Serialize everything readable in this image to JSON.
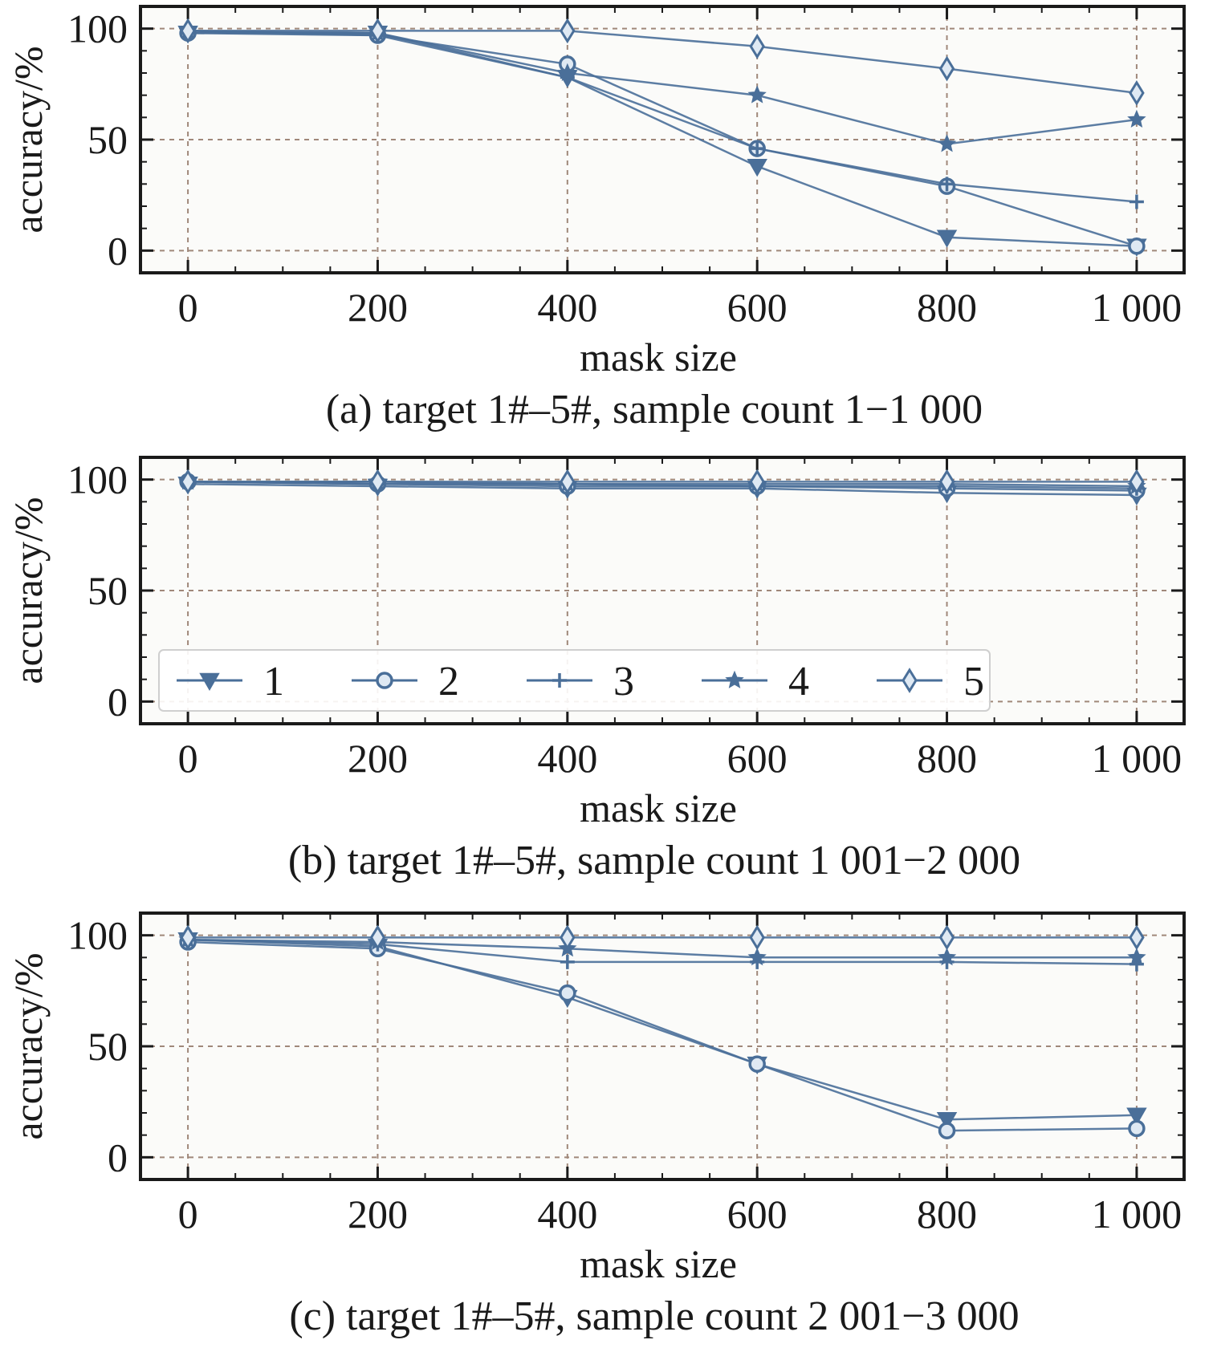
{
  "colors": {
    "series": "#4a6f99",
    "grid": "#a0887a",
    "axis": "#1a1a1a",
    "plot_bg": "#fbfbf9"
  },
  "chart_data": [
    {
      "type": "line",
      "caption": "(a) target 1#–5#, sample count 1−1 000",
      "xlabel": "mask size",
      "ylabel": "accuracy/%",
      "x": [
        0,
        200,
        400,
        600,
        800,
        1000
      ],
      "x_tick_labels": [
        "0",
        "200",
        "400",
        "600",
        "800",
        "1 000"
      ],
      "y_ticks": [
        0,
        50,
        100
      ],
      "y_tick_labels": [
        "0",
        "50",
        "100"
      ],
      "xlim": [
        -50,
        1050
      ],
      "ylim": [
        -10,
        110
      ],
      "grid": true,
      "series": [
        {
          "name": "1",
          "marker": "triangle-down",
          "values": [
            98,
            98,
            78,
            38,
            6,
            2
          ]
        },
        {
          "name": "2",
          "marker": "circle",
          "values": [
            98,
            97,
            84,
            46,
            29,
            2
          ]
        },
        {
          "name": "3",
          "marker": "plus",
          "values": [
            99,
            97,
            78,
            46,
            30,
            22
          ]
        },
        {
          "name": "4",
          "marker": "star",
          "values": [
            99,
            98,
            80,
            70,
            48,
            59
          ]
        },
        {
          "name": "5",
          "marker": "diamond",
          "values": [
            99,
            99,
            99,
            92,
            82,
            71
          ]
        }
      ]
    },
    {
      "type": "line",
      "caption": "(b) target 1#–5#, sample count 1 001−2 000",
      "xlabel": "mask size",
      "ylabel": "accuracy/%",
      "x": [
        0,
        200,
        400,
        600,
        800,
        1000
      ],
      "x_tick_labels": [
        "0",
        "200",
        "400",
        "600",
        "800",
        "1 000"
      ],
      "y_ticks": [
        0,
        50,
        100
      ],
      "y_tick_labels": [
        "0",
        "50",
        "100"
      ],
      "xlim": [
        -50,
        1050
      ],
      "ylim": [
        -10,
        110
      ],
      "grid": true,
      "legend": "bottom-left",
      "series": [
        {
          "name": "1",
          "marker": "triangle-down",
          "values": [
            98,
            97,
            96,
            96,
            94,
            93
          ]
        },
        {
          "name": "2",
          "marker": "circle",
          "values": [
            99,
            98,
            97,
            97,
            96,
            95
          ]
        },
        {
          "name": "3",
          "marker": "plus",
          "values": [
            99,
            98,
            98,
            97,
            97,
            96
          ]
        },
        {
          "name": "4",
          "marker": "star",
          "values": [
            99,
            99,
            98,
            98,
            98,
            97
          ]
        },
        {
          "name": "5",
          "marker": "diamond",
          "values": [
            99,
            99,
            99,
            99,
            99,
            99
          ]
        }
      ]
    },
    {
      "type": "line",
      "caption": "(c) target 1#–5#, sample count 2 001−3 000",
      "xlabel": "mask size",
      "ylabel": "accuracy/%",
      "x": [
        0,
        200,
        400,
        600,
        800,
        1000
      ],
      "x_tick_labels": [
        "0",
        "200",
        "400",
        "600",
        "800",
        "1 000"
      ],
      "y_ticks": [
        0,
        50,
        100
      ],
      "y_tick_labels": [
        "0",
        "50",
        "100"
      ],
      "xlim": [
        -50,
        1050
      ],
      "ylim": [
        -10,
        110
      ],
      "grid": true,
      "series": [
        {
          "name": "1",
          "marker": "triangle-down",
          "values": [
            98,
            95,
            72,
            42,
            17,
            19
          ]
        },
        {
          "name": "2",
          "marker": "circle",
          "values": [
            97,
            94,
            74,
            42,
            12,
            13
          ]
        },
        {
          "name": "3",
          "marker": "plus",
          "values": [
            98,
            96,
            88,
            88,
            88,
            87
          ]
        },
        {
          "name": "4",
          "marker": "star",
          "values": [
            98,
            97,
            94,
            90,
            90,
            90
          ]
        },
        {
          "name": "5",
          "marker": "diamond",
          "values": [
            99,
            99,
            99,
            99,
            99,
            99
          ]
        }
      ]
    }
  ]
}
